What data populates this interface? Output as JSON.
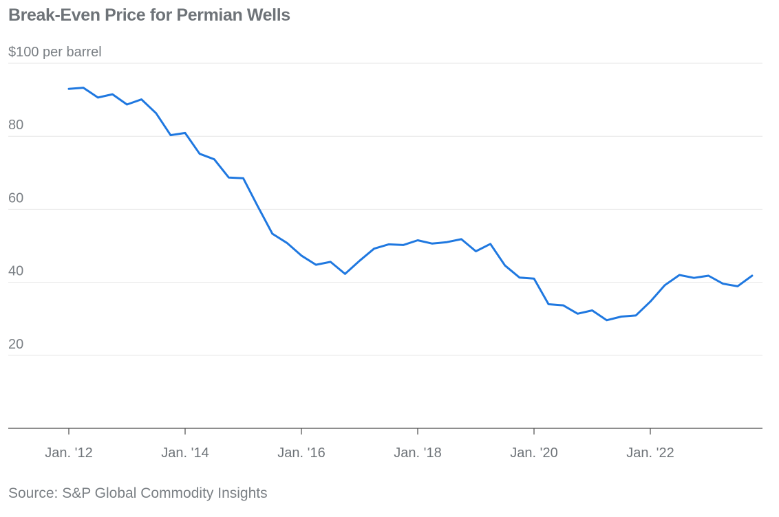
{
  "chart_data": {
    "type": "line",
    "title": "Break-Even Price for Permian Wells",
    "source": "Source: S&P Global Commodity Insights",
    "xlabel": "",
    "ylabel": "",
    "y_ticks": [
      {
        "value": 100,
        "label": "$100 per barrel"
      },
      {
        "value": 80,
        "label": "80"
      },
      {
        "value": 60,
        "label": "60"
      },
      {
        "value": 40,
        "label": "40"
      },
      {
        "value": 20,
        "label": "20"
      }
    ],
    "ylim": [
      0,
      100
    ],
    "xlim": [
      2012.0,
      2024.0
    ],
    "x_ticks": [
      {
        "value": 2012,
        "label": "Jan. '12"
      },
      {
        "value": 2014,
        "label": "Jan. '14"
      },
      {
        "value": 2016,
        "label": "Jan. '16"
      },
      {
        "value": 2018,
        "label": "Jan. '18"
      },
      {
        "value": 2020,
        "label": "Jan. '20"
      },
      {
        "value": 2022,
        "label": "Jan. '22"
      }
    ],
    "grid": true,
    "legend": "none",
    "colors": {
      "series": "#1f78e0",
      "grid": "#e6e6e6",
      "axis": "#4a4a4a"
    },
    "series": [
      {
        "x": [
          2012.0,
          2012.25,
          2012.5,
          2012.75,
          2013.0,
          2013.25,
          2013.5,
          2013.75,
          2014.0,
          2014.25,
          2014.5,
          2014.75,
          2015.0,
          2015.25,
          2015.5,
          2015.75,
          2016.0,
          2016.25,
          2016.5,
          2016.75,
          2017.0,
          2017.25,
          2017.5,
          2017.75,
          2018.0,
          2018.25,
          2018.5,
          2018.75,
          2019.0,
          2019.25,
          2019.5,
          2019.75,
          2020.0,
          2020.25,
          2020.5,
          2020.75,
          2021.0,
          2021.25,
          2021.5,
          2021.75,
          2022.0,
          2022.25,
          2022.5,
          2022.75,
          2023.0,
          2023.25,
          2023.5,
          2023.75
        ],
        "values": [
          93.0,
          93.3,
          90.6,
          91.5,
          88.7,
          90.1,
          86.3,
          80.3,
          80.9,
          75.2,
          73.7,
          68.7,
          68.5,
          60.8,
          53.3,
          50.8,
          47.3,
          44.8,
          45.6,
          42.3,
          45.9,
          49.2,
          50.4,
          50.2,
          51.5,
          50.6,
          51.0,
          51.8,
          48.5,
          50.5,
          44.6,
          41.3,
          41.0,
          34.0,
          33.7,
          31.4,
          32.3,
          29.6,
          30.6,
          30.9,
          34.7,
          39.2,
          42.0,
          41.2,
          41.8,
          39.6,
          38.9,
          41.8
        ]
      }
    ]
  }
}
